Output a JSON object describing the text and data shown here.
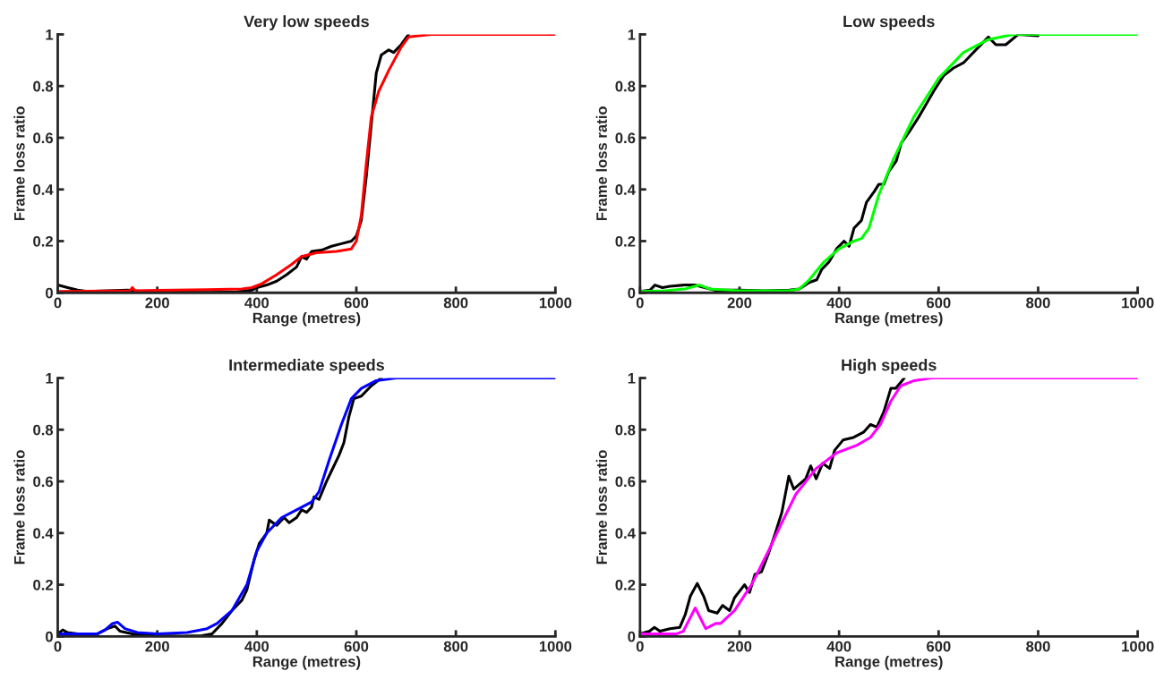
{
  "chart_data": [
    {
      "type": "line",
      "title": "Very low speeds",
      "xlabel": "Range (metres)",
      "ylabel": "Frame loss ratio",
      "xlim": [
        0,
        1000
      ],
      "ylim": [
        0,
        1
      ],
      "xticks": [
        0,
        200,
        400,
        600,
        800,
        1000
      ],
      "yticks": [
        0,
        0.2,
        0.4,
        0.6,
        0.8,
        1
      ],
      "series": [
        {
          "color": "#000000",
          "x": [
            0,
            20,
            40,
            60,
            100,
            140,
            170,
            200,
            300,
            360,
            390,
            400,
            420,
            440,
            460,
            480,
            490,
            500,
            510,
            530,
            550,
            570,
            590,
            600,
            610,
            620,
            630,
            640,
            650,
            665,
            675,
            690,
            705
          ],
          "values": [
            0.03,
            0.02,
            0.01,
            0.005,
            0.008,
            0.01,
            0.005,
            0.003,
            0.002,
            0.003,
            0.01,
            0.02,
            0.03,
            0.045,
            0.07,
            0.1,
            0.14,
            0.13,
            0.16,
            0.165,
            0.18,
            0.19,
            0.2,
            0.22,
            0.28,
            0.45,
            0.65,
            0.85,
            0.92,
            0.94,
            0.93,
            0.96,
            1.0
          ]
        },
        {
          "color": "#ff0000",
          "x": [
            0,
            100,
            145,
            150,
            155,
            200,
            300,
            370,
            390,
            410,
            440,
            470,
            490,
            520,
            560,
            590,
            600,
            610,
            620,
            630,
            645,
            665,
            690,
            705,
            750,
            1000
          ],
          "values": [
            0.005,
            0.007,
            0.008,
            0.02,
            0.008,
            0.009,
            0.012,
            0.015,
            0.02,
            0.035,
            0.07,
            0.11,
            0.14,
            0.155,
            0.16,
            0.17,
            0.2,
            0.3,
            0.5,
            0.68,
            0.78,
            0.86,
            0.95,
            0.99,
            1.0,
            1.0
          ]
        }
      ]
    },
    {
      "type": "line",
      "title": "Low speeds",
      "xlabel": "Range (metres)",
      "ylabel": "Frame loss ratio",
      "xlim": [
        0,
        1000
      ],
      "ylim": [
        0,
        1
      ],
      "xticks": [
        0,
        200,
        400,
        600,
        800,
        1000
      ],
      "yticks": [
        0,
        0.2,
        0.4,
        0.6,
        0.8,
        1
      ],
      "series": [
        {
          "color": "#000000",
          "x": [
            0,
            20,
            30,
            45,
            60,
            90,
            110,
            130,
            150,
            200,
            250,
            300,
            320,
            340,
            355,
            365,
            380,
            395,
            410,
            420,
            430,
            445,
            455,
            470,
            480,
            490,
            500,
            515,
            525,
            540,
            560,
            575,
            590,
            610,
            630,
            650,
            665,
            690,
            700,
            715,
            735,
            760,
            800
          ],
          "values": [
            0.005,
            0.01,
            0.03,
            0.02,
            0.025,
            0.03,
            0.03,
            0.02,
            0.01,
            0.01,
            0.008,
            0.01,
            0.015,
            0.04,
            0.05,
            0.09,
            0.12,
            0.17,
            0.2,
            0.18,
            0.25,
            0.28,
            0.35,
            0.39,
            0.42,
            0.42,
            0.47,
            0.51,
            0.58,
            0.62,
            0.68,
            0.73,
            0.78,
            0.84,
            0.87,
            0.89,
            0.92,
            0.97,
            0.99,
            0.96,
            0.96,
            1.0,
            0.995
          ]
        },
        {
          "color": "#00ff00",
          "x": [
            0,
            50,
            90,
            120,
            140,
            200,
            300,
            320,
            340,
            370,
            400,
            430,
            445,
            460,
            480,
            510,
            550,
            600,
            650,
            700,
            750,
            1000
          ],
          "values": [
            0.005,
            0.008,
            0.015,
            0.03,
            0.015,
            0.008,
            0.008,
            0.015,
            0.05,
            0.12,
            0.17,
            0.2,
            0.21,
            0.25,
            0.38,
            0.52,
            0.68,
            0.83,
            0.93,
            0.98,
            1.0,
            1.0
          ]
        }
      ]
    },
    {
      "type": "line",
      "title": "Intermediate speeds",
      "xlabel": "Range (metres)",
      "ylabel": "Frame loss ratio",
      "xlim": [
        0,
        1000
      ],
      "ylim": [
        0,
        1
      ],
      "xticks": [
        0,
        200,
        400,
        600,
        800,
        1000
      ],
      "yticks": [
        0,
        0.2,
        0.4,
        0.6,
        0.8,
        1
      ],
      "series": [
        {
          "color": "#000000",
          "x": [
            0,
            10,
            20,
            40,
            80,
            100,
            115,
            125,
            150,
            200,
            250,
            290,
            310,
            330,
            350,
            370,
            380,
            395,
            405,
            420,
            425,
            440,
            455,
            465,
            480,
            490,
            500,
            510,
            515,
            525,
            540,
            550,
            565,
            575,
            585,
            595,
            610,
            630,
            650
          ],
          "values": [
            0.01,
            0.025,
            0.015,
            0.01,
            0.01,
            0.03,
            0.04,
            0.02,
            0.01,
            0.003,
            0.001,
            0.003,
            0.01,
            0.05,
            0.1,
            0.14,
            0.18,
            0.3,
            0.36,
            0.4,
            0.45,
            0.43,
            0.46,
            0.44,
            0.46,
            0.49,
            0.48,
            0.5,
            0.54,
            0.53,
            0.6,
            0.64,
            0.7,
            0.75,
            0.85,
            0.92,
            0.93,
            0.97,
            1.0
          ]
        },
        {
          "color": "#0000ff",
          "x": [
            0,
            80,
            95,
            110,
            120,
            135,
            160,
            200,
            260,
            300,
            320,
            350,
            380,
            400,
            420,
            450,
            480,
            510,
            525,
            545,
            570,
            590,
            610,
            640,
            680,
            1000
          ],
          "values": [
            0.01,
            0.01,
            0.025,
            0.05,
            0.055,
            0.03,
            0.015,
            0.01,
            0.015,
            0.03,
            0.05,
            0.1,
            0.2,
            0.33,
            0.4,
            0.46,
            0.49,
            0.52,
            0.56,
            0.68,
            0.82,
            0.92,
            0.96,
            0.99,
            1.0,
            1.0
          ]
        }
      ]
    },
    {
      "type": "line",
      "title": "High speeds",
      "xlabel": "Range (metres)",
      "ylabel": "Frame loss ratio",
      "xlim": [
        0,
        1000
      ],
      "ylim": [
        0,
        1
      ],
      "xticks": [
        0,
        200,
        400,
        600,
        800,
        1000
      ],
      "yticks": [
        0,
        0.2,
        0.4,
        0.6,
        0.8,
        1
      ],
      "series": [
        {
          "color": "#000000",
          "x": [
            0,
            19,
            29,
            40,
            60,
            80,
            91,
            101,
            115,
            128,
            138,
            155,
            166,
            180,
            190,
            210,
            220,
            231,
            244,
            258,
            272,
            285,
            299,
            309,
            333,
            343,
            354,
            367,
            381,
            391,
            408,
            429,
            449,
            463,
            476,
            490,
            504,
            514,
            531
          ],
          "values": [
            0.01,
            0.02,
            0.035,
            0.02,
            0.03,
            0.035,
            0.085,
            0.155,
            0.205,
            0.155,
            0.1,
            0.09,
            0.12,
            0.1,
            0.15,
            0.2,
            0.17,
            0.24,
            0.25,
            0.32,
            0.4,
            0.48,
            0.62,
            0.57,
            0.61,
            0.66,
            0.61,
            0.67,
            0.65,
            0.72,
            0.76,
            0.77,
            0.79,
            0.82,
            0.81,
            0.87,
            0.96,
            0.96,
            1.0
          ]
        },
        {
          "color": "#ff00ff",
          "x": [
            0,
            74,
            87,
            111,
            132,
            152,
            162,
            190,
            224,
            258,
            285,
            313,
            354,
            395,
            436,
            463,
            483,
            504,
            524,
            551,
            586,
            1000
          ],
          "values": [
            0.01,
            0.01,
            0.02,
            0.11,
            0.03,
            0.05,
            0.05,
            0.1,
            0.2,
            0.33,
            0.44,
            0.55,
            0.65,
            0.71,
            0.74,
            0.77,
            0.82,
            0.91,
            0.97,
            0.99,
            1.0,
            1.0
          ]
        }
      ]
    }
  ]
}
